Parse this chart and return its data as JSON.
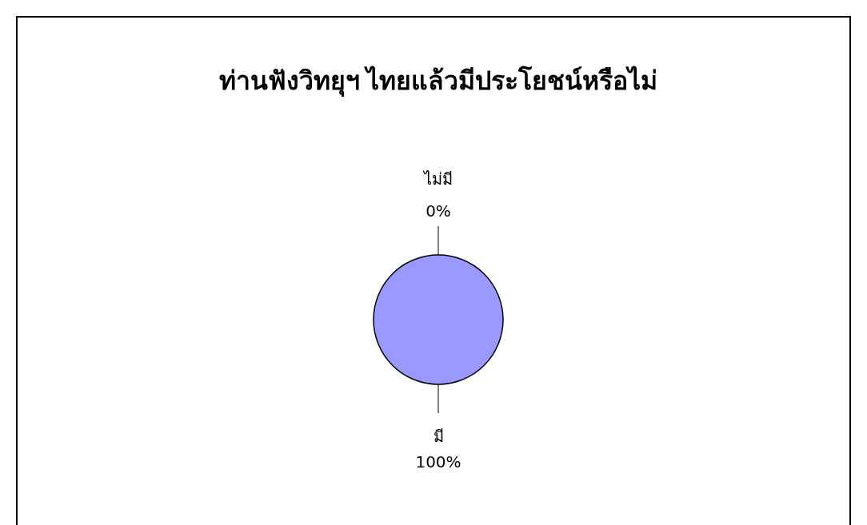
{
  "chart_data": {
    "type": "pie",
    "title": "ท่านฟังวิทยุฯ ไทยแล้วมีประโยชน์หรือไม่",
    "categories": [
      "ไม่มี",
      "มี"
    ],
    "values": [
      0,
      100
    ],
    "colors": [
      "#9999ff",
      "#9999ff"
    ],
    "value_labels": [
      "0%",
      "100%"
    ]
  }
}
